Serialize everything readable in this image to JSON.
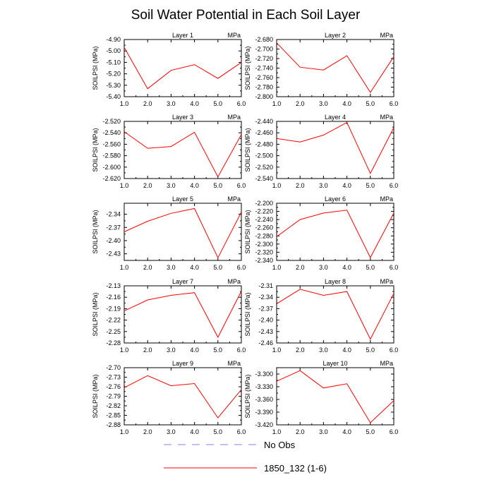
{
  "title": "Soil Water Potential in Each Soil Layer",
  "colors": {
    "model_line": "#ff0000",
    "obs_line": "#8080ff"
  },
  "legend": [
    {
      "label": "No Obs",
      "style": "dashed",
      "color": "#8080ff"
    },
    {
      "label": "1850_132 (1-6)",
      "style": "solid",
      "color": "#ff0000"
    }
  ],
  "chart_data": [
    {
      "type": "line",
      "title": "Layer 1",
      "unit": "MPa",
      "ylabel": "SOILPSI  (MPa)",
      "x": [
        1,
        2,
        3,
        4,
        5,
        6
      ],
      "xlim": [
        1,
        6
      ],
      "xticks": [
        "1.0",
        "2.0",
        "3.0",
        "4.0",
        "5.0",
        "6.0"
      ],
      "ylim": [
        -5.4,
        -4.9
      ],
      "yticks": [
        "-4.90",
        "-5.00",
        "-5.10",
        "-5.20",
        "-5.30",
        "-5.40"
      ],
      "series": [
        {
          "name": "1850_132 (1-6)",
          "values": [
            -4.97,
            -5.33,
            -5.17,
            -5.12,
            -5.24,
            -5.1
          ]
        }
      ]
    },
    {
      "type": "line",
      "title": "Layer 2",
      "unit": "MPa",
      "ylabel": "SOILPSI  (MPa)",
      "x": [
        1,
        2,
        3,
        4,
        5,
        6
      ],
      "xlim": [
        1,
        6
      ],
      "xticks": [
        "1.0",
        "2.0",
        "3.0",
        "4.0",
        "5.0",
        "6.0"
      ],
      "ylim": [
        -2.8,
        -2.68
      ],
      "yticks": [
        "-2.680",
        "-2.700",
        "-2.720",
        "-2.740",
        "-2.760",
        "-2.780",
        "-2.800"
      ],
      "series": [
        {
          "name": "1850_132 (1-6)",
          "values": [
            -2.687,
            -2.738,
            -2.744,
            -2.714,
            -2.791,
            -2.716
          ]
        }
      ]
    },
    {
      "type": "line",
      "title": "Layer 3",
      "unit": "MPa",
      "ylabel": "SOILPSI  (MPa)",
      "x": [
        1,
        2,
        3,
        4,
        5,
        6
      ],
      "xlim": [
        1,
        6
      ],
      "xticks": [
        "1.0",
        "2.0",
        "3.0",
        "4.0",
        "5.0",
        "6.0"
      ],
      "ylim": [
        -2.62,
        -2.52
      ],
      "yticks": [
        "-2.520",
        "-2.540",
        "-2.560",
        "-2.580",
        "-2.600",
        "-2.620"
      ],
      "series": [
        {
          "name": "1850_132 (1-6)",
          "values": [
            -2.538,
            -2.567,
            -2.564,
            -2.539,
            -2.617,
            -2.543
          ]
        }
      ]
    },
    {
      "type": "line",
      "title": "Layer 4",
      "unit": "MPa",
      "ylabel": "SOILPSI  (MPa)",
      "x": [
        1,
        2,
        3,
        4,
        5,
        6
      ],
      "xlim": [
        1,
        6
      ],
      "xticks": [
        "1.0",
        "2.0",
        "3.0",
        "4.0",
        "5.0",
        "6.0"
      ],
      "ylim": [
        -2.54,
        -2.44
      ],
      "yticks": [
        "-2.440",
        "-2.460",
        "-2.480",
        "-2.500",
        "-2.520",
        "-2.540"
      ],
      "series": [
        {
          "name": "1850_132 (1-6)",
          "values": [
            -2.47,
            -2.476,
            -2.464,
            -2.442,
            -2.531,
            -2.451
          ]
        }
      ]
    },
    {
      "type": "line",
      "title": "Layer 5",
      "unit": "MPa",
      "ylabel": "SOILPSI  (MPa)",
      "x": [
        1,
        2,
        3,
        4,
        5,
        6
      ],
      "xlim": [
        1,
        6
      ],
      "xticks": [
        "1.0",
        "2.0",
        "3.0",
        "4.0",
        "5.0",
        "6.0"
      ],
      "ylim": [
        -2.445,
        -2.315
      ],
      "yticks": [
        "-2.34",
        "-2.37",
        "-2.40",
        "-2.43"
      ],
      "series": [
        {
          "name": "1850_132 (1-6)",
          "values": [
            -2.38,
            -2.356,
            -2.338,
            -2.327,
            -2.439,
            -2.335
          ]
        }
      ]
    },
    {
      "type": "line",
      "title": "Layer 6",
      "unit": "MPa",
      "ylabel": "SOILPSI  (MPa)",
      "x": [
        1,
        2,
        3,
        4,
        5,
        6
      ],
      "xlim": [
        1,
        6
      ],
      "xticks": [
        "1.0",
        "2.0",
        "3.0",
        "4.0",
        "5.0",
        "6.0"
      ],
      "ylim": [
        -2.34,
        -2.2
      ],
      "yticks": [
        "-2.200",
        "-2.220",
        "-2.240",
        "-2.260",
        "-2.280",
        "-2.300",
        "-2.320",
        "-2.340"
      ],
      "series": [
        {
          "name": "1850_132 (1-6)",
          "values": [
            -2.282,
            -2.24,
            -2.224,
            -2.217,
            -2.333,
            -2.224
          ]
        }
      ]
    },
    {
      "type": "line",
      "title": "Layer 7",
      "unit": "MPa",
      "ylabel": "SOILPSI  (MPa)",
      "x": [
        1,
        2,
        3,
        4,
        5,
        6
      ],
      "xlim": [
        1,
        6
      ],
      "xticks": [
        "1.0",
        "2.0",
        "3.0",
        "4.0",
        "5.0",
        "6.0"
      ],
      "ylim": [
        -2.28,
        -2.13
      ],
      "yticks": [
        "-2.13",
        "-2.16",
        "-2.19",
        "-2.22",
        "-2.25",
        "-2.28"
      ],
      "series": [
        {
          "name": "1850_132 (1-6)",
          "values": [
            -2.196,
            -2.167,
            -2.155,
            -2.148,
            -2.265,
            -2.144
          ]
        }
      ]
    },
    {
      "type": "line",
      "title": "Layer 8",
      "unit": "MPa",
      "ylabel": "SOILPSI  (MPa)",
      "x": [
        1,
        2,
        3,
        4,
        5,
        6
      ],
      "xlim": [
        1,
        6
      ],
      "xticks": [
        "1.0",
        "2.0",
        "3.0",
        "4.0",
        "5.0",
        "6.0"
      ],
      "ylim": [
        -2.46,
        -2.31
      ],
      "yticks": [
        "-2.31",
        "-2.34",
        "-2.37",
        "-2.40",
        "-2.43",
        "-2.46"
      ],
      "series": [
        {
          "name": "1850_132 (1-6)",
          "values": [
            -2.357,
            -2.319,
            -2.335,
            -2.325,
            -2.45,
            -2.33
          ]
        }
      ]
    },
    {
      "type": "line",
      "title": "Layer 9",
      "unit": "MPa",
      "ylabel": "SOILPSI  (MPa)",
      "x": [
        1,
        2,
        3,
        4,
        5,
        6
      ],
      "xlim": [
        1,
        6
      ],
      "xticks": [
        "1.0",
        "2.0",
        "3.0",
        "4.0",
        "5.0",
        "6.0"
      ],
      "ylim": [
        -2.88,
        -2.7
      ],
      "yticks": [
        "-2.70",
        "-2.73",
        "-2.76",
        "-2.79",
        "-2.82",
        "-2.85",
        "-2.88"
      ],
      "series": [
        {
          "name": "1850_132 (1-6)",
          "values": [
            -2.763,
            -2.725,
            -2.757,
            -2.75,
            -2.858,
            -2.769
          ]
        }
      ]
    },
    {
      "type": "line",
      "title": "Layer 10",
      "unit": "MPa",
      "ylabel": "SOILPSI  (MPa)",
      "x": [
        1,
        2,
        3,
        4,
        5,
        6
      ],
      "xlim": [
        1,
        6
      ],
      "xticks": [
        "1.0",
        "2.0",
        "3.0",
        "4.0",
        "5.0",
        "6.0"
      ],
      "ylim": [
        -3.42,
        -3.285
      ],
      "yticks": [
        "-3.300",
        "-3.330",
        "-3.360",
        "-3.390",
        "-3.420"
      ],
      "series": [
        {
          "name": "1850_132 (1-6)",
          "values": [
            -3.317,
            -3.292,
            -3.333,
            -3.323,
            -3.415,
            -3.363
          ]
        }
      ]
    }
  ]
}
